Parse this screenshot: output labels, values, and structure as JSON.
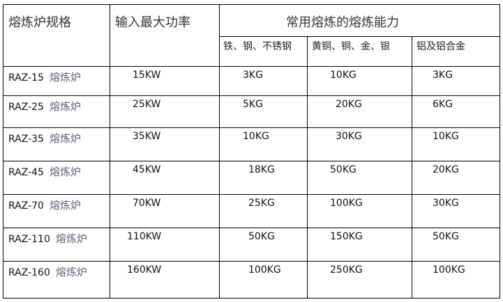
{
  "header": {
    "spec": "熔炼炉规格",
    "power": "输入最大功率",
    "capacity": "常用熔炼的熔炼能力",
    "sub": [
      "铁、钢、不锈钢",
      "黄铜、铜、金、银",
      "铝及铝合金"
    ]
  },
  "rows": [
    {
      "model": "RAZ-15",
      "suffix": "熔炼炉",
      "power": "15KW",
      "steel": "3KG",
      "copper": "10KG",
      "aluminum": "3KG"
    },
    {
      "model": "RAZ-25",
      "suffix": "熔炼炉",
      "power": "25KW",
      "steel": "5KG",
      "copper": "20KG",
      "aluminum": "6KG"
    },
    {
      "model": "RAZ-35",
      "suffix": "熔炼炉",
      "power": "35KW",
      "steel": "10KG",
      "copper": "30KG",
      "aluminum": "10KG"
    },
    {
      "model": "RAZ-45",
      "suffix": "熔炼炉",
      "power": "45KW",
      "steel": "18KG",
      "copper": "50KG",
      "aluminum": "20KG"
    },
    {
      "model": "RAZ-70",
      "suffix": "熔炼炉",
      "power": "70KW",
      "steel": "25KG",
      "copper": "100KG",
      "aluminum": "30KG"
    },
    {
      "model": "RAZ-110",
      "suffix": "熔炼炉",
      "power": "110KW",
      "steel": "50KG",
      "copper": "150KG",
      "aluminum": "50KG"
    },
    {
      "model": "RAZ-160",
      "suffix": "熔炼炉",
      "power": "160KW",
      "steel": "100KG",
      "copper": "250KG",
      "aluminum": "100KG"
    }
  ]
}
